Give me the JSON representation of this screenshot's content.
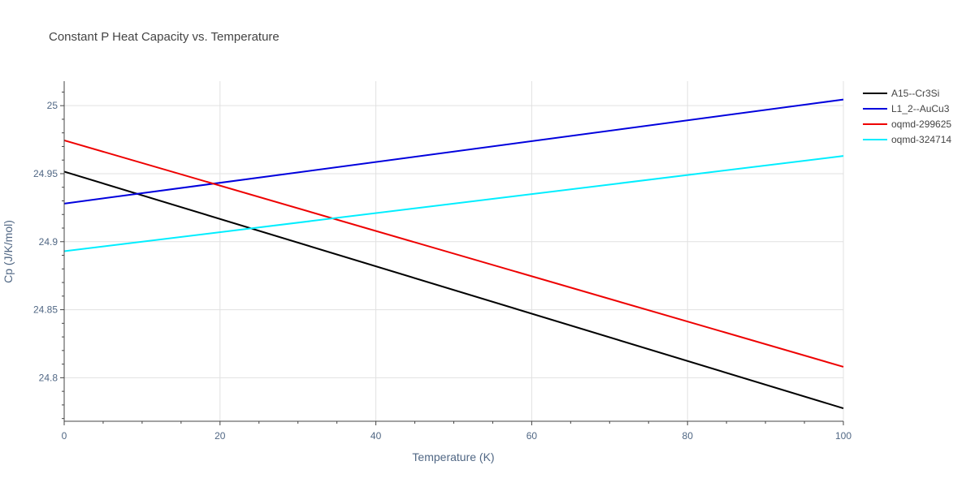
{
  "chart_data": {
    "type": "line",
    "title": "Constant P Heat Capacity vs. Temperature",
    "xlabel": "Temperature (K)",
    "ylabel": "Cp (J/K/mol)",
    "xlim": [
      0,
      100
    ],
    "ylim": [
      24.768,
      25.018
    ],
    "xticks": [
      0,
      20,
      40,
      60,
      80,
      100
    ],
    "yticks": [
      24.8,
      24.85,
      24.9,
      24.95,
      25
    ],
    "ytick_labels": [
      "24.8",
      "24.85",
      "24.9",
      "24.95",
      "25"
    ],
    "grid": true,
    "legend_position": "top-right",
    "series": [
      {
        "name": "A15--Cr3Si",
        "color": "#000000",
        "x": [
          0,
          100
        ],
        "y": [
          24.9515,
          24.7775
        ]
      },
      {
        "name": "L1_2--AuCu3",
        "color": "#0000dd",
        "x": [
          0,
          100
        ],
        "y": [
          24.928,
          25.0045
        ]
      },
      {
        "name": "oqmd-299625",
        "color": "#ee0000",
        "x": [
          0,
          100
        ],
        "y": [
          24.9745,
          24.808
        ]
      },
      {
        "name": "oqmd-324714",
        "color": "#00eeff",
        "x": [
          0,
          100
        ],
        "y": [
          24.893,
          24.963
        ]
      }
    ]
  }
}
